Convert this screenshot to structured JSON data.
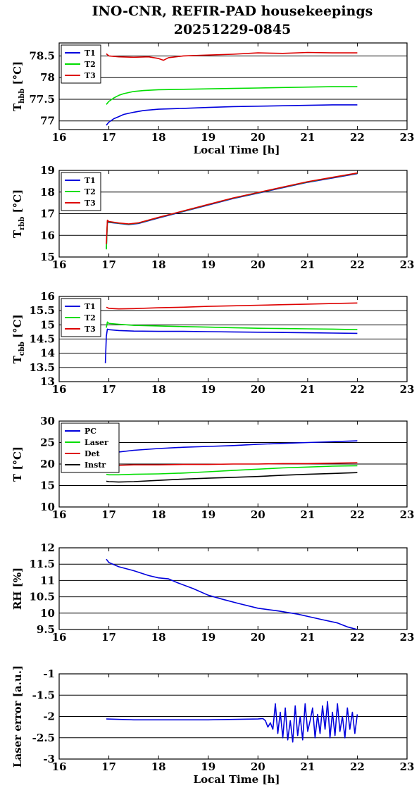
{
  "title_line1": "INO-CNR, REFIR-PAD housekeepings",
  "title_line2": "20251229-0845",
  "chart_data": [
    {
      "type": "line",
      "ylabel_main": "T",
      "ylabel_sub": "hbb",
      "ylabel_unit": " [°C]",
      "xlabel": "Local Time [h]",
      "xlim": [
        16,
        23
      ],
      "ylim": [
        76.8,
        78.8
      ],
      "yticks": [
        77,
        77.5,
        78,
        78.5
      ],
      "ytick_labels": [
        "77",
        "77.5",
        "78",
        "78.5"
      ],
      "xticks": [
        16,
        17,
        18,
        19,
        20,
        21,
        22,
        23
      ],
      "xtick_labels": [
        "16",
        "17",
        "18",
        "19",
        "20",
        "21",
        "22",
        "23"
      ],
      "grid": true,
      "legend_position": "top-left",
      "series": [
        {
          "name": "T1",
          "color": "#0000dd",
          "x": [
            16.95,
            17.0,
            17.1,
            17.2,
            17.3,
            17.5,
            17.7,
            18.0,
            18.5,
            19.0,
            19.5,
            20.0,
            20.5,
            21.0,
            21.5,
            22.0
          ],
          "values": [
            76.9,
            76.97,
            77.05,
            77.1,
            77.15,
            77.2,
            77.24,
            77.27,
            77.29,
            77.31,
            77.33,
            77.34,
            77.35,
            77.36,
            77.37,
            77.37
          ]
        },
        {
          "name": "T2",
          "color": "#00dd00",
          "x": [
            16.95,
            17.0,
            17.1,
            17.2,
            17.3,
            17.5,
            17.7,
            18.0,
            18.5,
            19.0,
            19.5,
            20.0,
            20.5,
            21.0,
            21.5,
            22.0
          ],
          "values": [
            77.38,
            77.45,
            77.53,
            77.59,
            77.63,
            77.68,
            77.7,
            77.72,
            77.73,
            77.74,
            77.75,
            77.76,
            77.77,
            77.78,
            77.79,
            77.79
          ]
        },
        {
          "name": "T3",
          "color": "#dd0000",
          "x": [
            16.95,
            17.0,
            17.2,
            17.5,
            17.8,
            18.0,
            18.1,
            18.2,
            18.5,
            19.0,
            19.5,
            20.0,
            20.5,
            21.0,
            21.5,
            22.0
          ],
          "values": [
            78.55,
            78.5,
            78.48,
            78.47,
            78.48,
            78.44,
            78.4,
            78.46,
            78.5,
            78.52,
            78.54,
            78.57,
            78.56,
            78.58,
            78.57,
            78.57
          ]
        }
      ]
    },
    {
      "type": "line",
      "ylabel_main": "T",
      "ylabel_sub": "rbb",
      "ylabel_unit": " [°C]",
      "xlabel": "",
      "xlim": [
        16,
        23
      ],
      "ylim": [
        15,
        19
      ],
      "yticks": [
        15,
        16,
        17,
        18,
        19
      ],
      "ytick_labels": [
        "15",
        "16",
        "17",
        "18",
        "19"
      ],
      "xticks": [
        16,
        17,
        18,
        19,
        20,
        21,
        22,
        23
      ],
      "xtick_labels": [
        "16",
        "17",
        "18",
        "19",
        "20",
        "21",
        "22",
        "23"
      ],
      "grid": true,
      "legend_position": "top-left",
      "series": [
        {
          "name": "T1",
          "color": "#0000dd",
          "x": [
            16.95,
            16.97,
            17.0,
            17.2,
            17.4,
            17.6,
            18.0,
            18.5,
            19.0,
            19.5,
            20.0,
            20.5,
            21.0,
            21.5,
            22.0
          ],
          "values": [
            15.4,
            16.6,
            16.6,
            16.55,
            16.5,
            16.55,
            16.8,
            17.1,
            17.4,
            17.7,
            17.95,
            18.2,
            18.45,
            18.65,
            18.85
          ]
        },
        {
          "name": "T2",
          "color": "#00dd00",
          "x": [
            16.95,
            16.97,
            17.0,
            17.2,
            17.4,
            17.6,
            18.0,
            18.5,
            19.0,
            19.5,
            20.0,
            20.5,
            21.0,
            21.5,
            22.0
          ],
          "values": [
            15.35,
            16.65,
            16.62,
            16.56,
            16.52,
            16.57,
            16.82,
            17.12,
            17.42,
            17.72,
            17.97,
            18.22,
            18.47,
            18.67,
            18.87
          ]
        },
        {
          "name": "T3",
          "color": "#dd0000",
          "x": [
            16.95,
            16.97,
            17.0,
            17.2,
            17.4,
            17.6,
            18.0,
            18.5,
            19.0,
            19.5,
            20.0,
            20.5,
            21.0,
            21.5,
            22.0
          ],
          "values": [
            15.6,
            16.7,
            16.64,
            16.57,
            16.53,
            16.58,
            16.83,
            17.13,
            17.43,
            17.73,
            17.98,
            18.23,
            18.48,
            18.68,
            18.88
          ]
        }
      ]
    },
    {
      "type": "line",
      "ylabel_main": "T",
      "ylabel_sub": "cbb",
      "ylabel_unit": " [°C]",
      "xlabel": "",
      "xlim": [
        16,
        23
      ],
      "ylim": [
        13,
        16
      ],
      "yticks": [
        13,
        13.5,
        14,
        14.5,
        15,
        15.5,
        16
      ],
      "ytick_labels": [
        "13",
        "13.5",
        "14",
        "14.5",
        "15",
        "15.5",
        "16"
      ],
      "xticks": [
        16,
        17,
        18,
        19,
        20,
        21,
        22,
        23
      ],
      "xtick_labels": [
        "16",
        "17",
        "18",
        "19",
        "20",
        "21",
        "22",
        "23"
      ],
      "grid": true,
      "legend_position": "top-left",
      "series": [
        {
          "name": "T1",
          "color": "#0000dd",
          "x": [
            16.93,
            16.95,
            16.97,
            17.0,
            17.2,
            17.5,
            18.0,
            18.5,
            19.0,
            19.5,
            20.0,
            20.5,
            21.0,
            21.5,
            22.0
          ],
          "values": [
            13.65,
            14.6,
            14.85,
            14.83,
            14.8,
            14.78,
            14.77,
            14.77,
            14.76,
            14.75,
            14.74,
            14.73,
            14.72,
            14.71,
            14.7
          ]
        },
        {
          "name": "T2",
          "color": "#00dd00",
          "x": [
            16.95,
            16.97,
            17.0,
            17.2,
            17.5,
            18.0,
            18.5,
            19.0,
            19.5,
            20.0,
            20.5,
            21.0,
            21.5,
            22.0
          ],
          "values": [
            14.9,
            15.1,
            15.05,
            15.02,
            14.98,
            14.96,
            14.94,
            14.92,
            14.9,
            14.88,
            14.87,
            14.86,
            14.85,
            14.83
          ]
        },
        {
          "name": "T3",
          "color": "#dd0000",
          "x": [
            16.95,
            17.0,
            17.2,
            17.5,
            18.0,
            18.5,
            19.0,
            19.5,
            20.0,
            20.5,
            21.0,
            21.5,
            22.0
          ],
          "values": [
            15.62,
            15.58,
            15.56,
            15.57,
            15.6,
            15.62,
            15.65,
            15.67,
            15.69,
            15.71,
            15.73,
            15.75,
            15.77
          ]
        }
      ]
    },
    {
      "type": "line",
      "ylabel_main": "T",
      "ylabel_sub": "",
      "ylabel_unit": " [°C]",
      "xlabel": "",
      "xlim": [
        16,
        23
      ],
      "ylim": [
        10,
        30
      ],
      "yticks": [
        10,
        15,
        20,
        25,
        30
      ],
      "ytick_labels": [
        "10",
        "15",
        "20",
        "25",
        "30"
      ],
      "xticks": [
        16,
        17,
        18,
        19,
        20,
        21,
        22,
        23
      ],
      "xtick_labels": [
        "16",
        "17",
        "18",
        "19",
        "20",
        "21",
        "22",
        "23"
      ],
      "grid": true,
      "legend_position": "top-left",
      "series": [
        {
          "name": "PC",
          "color": "#0000dd",
          "x": [
            16.95,
            17.0,
            17.2,
            17.5,
            18.0,
            18.5,
            19.0,
            19.5,
            20.0,
            20.5,
            21.0,
            21.5,
            22.0
          ],
          "values": [
            21.8,
            22.2,
            22.8,
            23.2,
            23.6,
            23.9,
            24.1,
            24.3,
            24.6,
            24.8,
            25.0,
            25.2,
            25.4
          ]
        },
        {
          "name": "Laser",
          "color": "#00dd00",
          "x": [
            16.95,
            17.0,
            17.2,
            17.5,
            18.0,
            18.5,
            19.0,
            19.5,
            20.0,
            20.5,
            21.0,
            21.5,
            22.0
          ],
          "values": [
            17.6,
            17.5,
            17.5,
            17.6,
            17.7,
            17.9,
            18.2,
            18.5,
            18.8,
            19.1,
            19.3,
            19.5,
            19.6
          ]
        },
        {
          "name": "Det",
          "color": "#dd0000",
          "x": [
            16.95,
            17.0,
            17.2,
            17.5,
            18.0,
            18.5,
            19.0,
            19.5,
            20.0,
            20.5,
            21.0,
            21.5,
            22.0
          ],
          "values": [
            19.8,
            19.7,
            19.7,
            19.8,
            19.8,
            19.9,
            19.9,
            20.0,
            20.0,
            20.1,
            20.1,
            20.2,
            20.3
          ]
        },
        {
          "name": "Instr",
          "color": "#000000",
          "x": [
            16.95,
            17.0,
            17.2,
            17.5,
            18.0,
            18.5,
            19.0,
            19.5,
            20.0,
            20.5,
            21.0,
            21.5,
            22.0
          ],
          "values": [
            16.0,
            15.9,
            15.8,
            15.9,
            16.2,
            16.5,
            16.7,
            16.9,
            17.1,
            17.4,
            17.6,
            17.8,
            18.0
          ]
        }
      ]
    },
    {
      "type": "line",
      "ylabel_main": "RH [%]",
      "ylabel_sub": "",
      "ylabel_unit": "",
      "xlabel": "",
      "xlim": [
        16,
        23
      ],
      "ylim": [
        9.5,
        12
      ],
      "yticks": [
        9.5,
        10,
        10.5,
        11,
        11.5,
        12
      ],
      "ytick_labels": [
        "9.5",
        "10",
        "10.5",
        "11",
        "11.5",
        "12"
      ],
      "xticks": [
        16,
        17,
        18,
        19,
        20,
        21,
        22,
        23
      ],
      "xtick_labels": [
        "16",
        "17",
        "18",
        "19",
        "20",
        "21",
        "22",
        "23"
      ],
      "grid": true,
      "legend_position": "",
      "series": [
        {
          "color": "#0000dd",
          "x": [
            16.95,
            17.0,
            17.2,
            17.5,
            17.8,
            18.0,
            18.2,
            18.4,
            18.7,
            19.0,
            19.3,
            19.6,
            20.0,
            20.4,
            20.8,
            21.0,
            21.3,
            21.6,
            21.8,
            22.0
          ],
          "values": [
            11.65,
            11.55,
            11.42,
            11.3,
            11.15,
            11.08,
            11.05,
            10.92,
            10.75,
            10.55,
            10.42,
            10.3,
            10.15,
            10.07,
            9.97,
            9.9,
            9.8,
            9.7,
            9.58,
            9.5
          ]
        }
      ]
    },
    {
      "type": "line",
      "ylabel_main": "Laser error [a.u.]",
      "ylabel_sub": "",
      "ylabel_unit": "",
      "xlabel": "Local Time [h]",
      "xlim": [
        16,
        23
      ],
      "ylim": [
        -3,
        -1
      ],
      "yticks": [
        -3,
        -2.5,
        -2,
        -1.5,
        -1
      ],
      "ytick_labels": [
        "-3",
        "-2.5",
        "-2",
        "-1.5",
        "-1"
      ],
      "xticks": [
        16,
        17,
        18,
        19,
        20,
        21,
        22,
        23
      ],
      "xtick_labels": [
        "16",
        "17",
        "18",
        "19",
        "20",
        "21",
        "22",
        "23"
      ],
      "grid": true,
      "legend_position": "",
      "series": [
        {
          "color": "#0000dd",
          "x": [
            16.95,
            17.5,
            18.0,
            18.5,
            19.0,
            19.5,
            20.0,
            20.1,
            20.15,
            20.2,
            20.25,
            20.3,
            20.35,
            20.4,
            20.45,
            20.5,
            20.55,
            20.6,
            20.65,
            20.7,
            20.75,
            20.8,
            20.85,
            20.9,
            20.95,
            21.0,
            21.05,
            21.1,
            21.15,
            21.2,
            21.25,
            21.3,
            21.35,
            21.4,
            21.45,
            21.5,
            21.55,
            21.6,
            21.65,
            21.7,
            21.75,
            21.8,
            21.85,
            21.9,
            21.95,
            22.0
          ],
          "values": [
            -2.06,
            -2.08,
            -2.08,
            -2.08,
            -2.08,
            -2.07,
            -2.06,
            -2.05,
            -2.1,
            -2.25,
            -2.15,
            -2.3,
            -1.7,
            -2.4,
            -1.9,
            -2.5,
            -1.8,
            -2.55,
            -2.1,
            -2.6,
            -1.75,
            -2.45,
            -2.0,
            -2.55,
            -1.7,
            -2.35,
            -2.1,
            -1.8,
            -2.5,
            -1.95,
            -2.4,
            -1.75,
            -2.3,
            -1.65,
            -2.5,
            -1.9,
            -2.45,
            -1.7,
            -2.35,
            -2.0,
            -2.5,
            -1.8,
            -2.3,
            -1.9,
            -2.4,
            -1.95
          ]
        }
      ]
    }
  ]
}
